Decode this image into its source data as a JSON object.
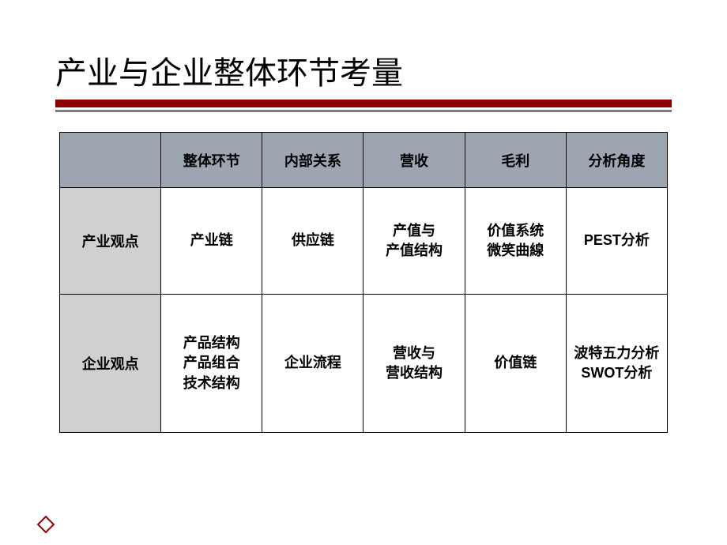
{
  "slide": {
    "title": "产业与企业整体环节考量",
    "title_color": "#000000",
    "title_fontsize": 40,
    "underline_color_primary": "#8b0000",
    "underline_color_secondary": "#808080",
    "background_color": "#ffffff"
  },
  "table": {
    "type": "table",
    "header_bg_color": "#9ca5b0",
    "row_header_bg_color": "#d0d0d0",
    "border_color": "#000000",
    "text_color": "#000000",
    "font_size": 18,
    "columns": [
      "",
      "整体环节",
      "内部关系",
      "营收",
      "毛利",
      "分析角度"
    ],
    "rows": [
      {
        "header": "产业观点",
        "cells": [
          {
            "lines": [
              "产业链"
            ]
          },
          {
            "lines": [
              "供应链"
            ]
          },
          {
            "lines": [
              "产值与",
              "产值结构"
            ]
          },
          {
            "lines": [
              "价值系统",
              "微笑曲線"
            ]
          },
          {
            "lines": [
              "PEST分析"
            ]
          }
        ]
      },
      {
        "header": "企业观点",
        "cells": [
          {
            "lines": [
              "产品结构",
              "产品组合",
              "技术结构"
            ]
          },
          {
            "lines": [
              "企业流程"
            ]
          },
          {
            "lines": [
              "营收与",
              "营收结构"
            ]
          },
          {
            "lines": [
              "价值链"
            ]
          },
          {
            "lines": [
              "波特五力分析",
              "SWOT分析"
            ]
          }
        ]
      }
    ]
  },
  "bullet": {
    "border_color": "#8b0000"
  }
}
